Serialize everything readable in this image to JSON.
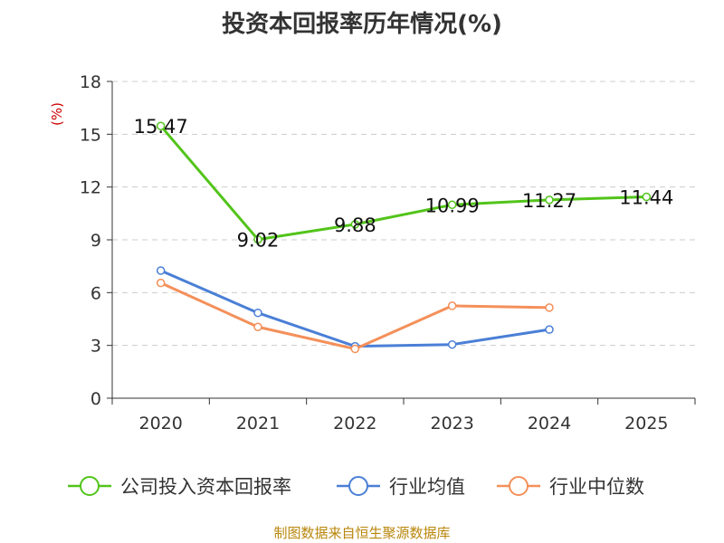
{
  "chart_data": {
    "type": "line",
    "title": "投资本回报率历年情况(%)",
    "ylabel": "(%)",
    "xlabel": "",
    "categories": [
      "2020",
      "2021",
      "2022",
      "2023",
      "2024",
      "2025"
    ],
    "ylim": [
      0,
      18
    ],
    "yticks": [
      0,
      3,
      6,
      9,
      12,
      15,
      18
    ],
    "grid": true,
    "legend_position": "bottom",
    "series": [
      {
        "name": "公司投入资本回报率",
        "color": "#52c41a",
        "values": [
          15.47,
          9.02,
          9.88,
          10.99,
          11.27,
          11.44
        ],
        "labels": [
          "15.47",
          "9.02",
          "9.88",
          "10.99",
          "11.27",
          "11.44"
        ]
      },
      {
        "name": "行业均值",
        "color": "#4a7fd6",
        "values": [
          7.25,
          4.85,
          2.95,
          3.05,
          3.9,
          null
        ]
      },
      {
        "name": "行业中位数",
        "color": "#f4905a",
        "values": [
          6.55,
          4.05,
          2.8,
          5.25,
          5.15,
          null
        ]
      }
    ],
    "source": "制图数据来自恒生聚源数据库"
  }
}
